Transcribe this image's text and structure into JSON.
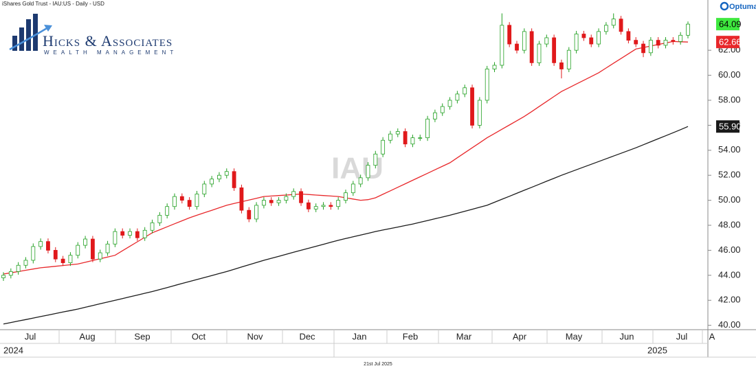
{
  "brand": {
    "firm": "Hicks & Associates",
    "tagline": "WEALTH MANAGEMENT",
    "vendor": "Optuma"
  },
  "chart_data": {
    "type": "candlestick",
    "title": "iShares Gold Trust - IAU:US - Daily - USD",
    "watermark": "IAU",
    "date_stamp": "21st Jul 2025",
    "up_color": "#22a022",
    "down_color": "#e0191b",
    "open": [
      43.8,
      44.0,
      44.3,
      44.8,
      45.2,
      46.3,
      46.7,
      46.0,
      45.3,
      45.0,
      45.6,
      46.4,
      46.9,
      45.3,
      45.8,
      46.5,
      47.5,
      47.2,
      47.5,
      47.0,
      47.6,
      48.2,
      48.8,
      49.5,
      50.3,
      50.0,
      49.5,
      50.5,
      51.3,
      51.7,
      52.0,
      52.3,
      51.0,
      49.2,
      48.5,
      49.6,
      50.0,
      49.8,
      50.0,
      50.3,
      50.7,
      49.8,
      49.3,
      49.5,
      49.6,
      49.5,
      50.0,
      50.6,
      51.3,
      51.8,
      52.8,
      53.7,
      54.8,
      55.3,
      55.5,
      54.5,
      55.0,
      55.0,
      56.5,
      57.0,
      57.5,
      58.0,
      58.5,
      59.0,
      56.0,
      58.0,
      60.5,
      60.8,
      64.0,
      62.5,
      62.0,
      63.5,
      61.0,
      62.5,
      63.0,
      61.0,
      60.5,
      62.0,
      63.3,
      63.0,
      62.5,
      63.5,
      64.0,
      64.5,
      63.5,
      62.8,
      62.5,
      61.8,
      62.8,
      62.4,
      62.8,
      62.7,
      63.2
    ],
    "high": [
      44.25,
      44.55,
      45.05,
      45.45,
      46.55,
      46.95,
      46.95,
      46.25,
      45.55,
      45.85,
      46.65,
      47.15,
      47.15,
      46.05,
      46.75,
      47.75,
      47.75,
      47.75,
      47.75,
      47.85,
      48.45,
      49.05,
      49.75,
      50.55,
      50.55,
      50.25,
      50.75,
      51.55,
      51.95,
      52.25,
      52.55,
      52.55,
      51.25,
      49.45,
      49.85,
      50.25,
      50.25,
      50.25,
      50.55,
      50.95,
      50.95,
      50.05,
      49.75,
      49.85,
      49.85,
      50.25,
      50.85,
      51.55,
      52.05,
      53.05,
      53.95,
      55.05,
      55.55,
      55.75,
      55.75,
      55.25,
      55.25,
      56.75,
      57.25,
      57.75,
      58.25,
      58.75,
      59.25,
      59.25,
      58.25,
      60.75,
      61.05,
      64.95,
      64.25,
      62.75,
      63.75,
      63.75,
      62.75,
      63.25,
      63.25,
      61.25,
      62.25,
      63.55,
      63.55,
      63.25,
      63.75,
      64.25,
      64.95,
      64.75,
      63.75,
      63.05,
      62.75,
      63.05,
      63.05,
      63.05,
      63.05,
      63.45,
      64.3
    ],
    "low": [
      43.55,
      43.75,
      44.05,
      44.55,
      44.95,
      46.05,
      45.75,
      45.05,
      44.75,
      44.75,
      45.35,
      46.15,
      45.05,
      45.05,
      45.55,
      46.25,
      46.95,
      46.95,
      46.75,
      46.75,
      47.35,
      47.95,
      48.55,
      49.25,
      49.75,
      49.25,
      49.25,
      50.25,
      51.05,
      51.45,
      51.75,
      50.75,
      48.95,
      48.25,
      48.25,
      49.35,
      49.55,
      49.55,
      49.75,
      50.05,
      49.55,
      49.05,
      49.05,
      49.25,
      49.25,
      49.25,
      49.75,
      50.35,
      51.05,
      51.55,
      52.55,
      53.45,
      54.55,
      55.05,
      54.25,
      54.25,
      54.75,
      54.75,
      56.25,
      56.75,
      57.25,
      57.75,
      58.25,
      55.75,
      55.75,
      57.75,
      60.25,
      60.55,
      62.25,
      61.75,
      61.75,
      60.75,
      60.75,
      62.25,
      60.75,
      59.75,
      60.25,
      61.75,
      62.75,
      62.25,
      62.25,
      63.25,
      63.75,
      63.25,
      62.55,
      62.25,
      61.45,
      61.55,
      62.15,
      62.15,
      62.45,
      62.45,
      62.95
    ],
    "close": [
      44.0,
      44.3,
      44.8,
      45.2,
      46.3,
      46.7,
      46.0,
      45.3,
      45.0,
      45.6,
      46.4,
      46.9,
      45.3,
      45.8,
      46.5,
      47.5,
      47.2,
      47.5,
      47.0,
      47.6,
      48.2,
      48.8,
      49.5,
      50.3,
      50.0,
      49.5,
      50.5,
      51.3,
      51.7,
      52.0,
      52.3,
      51.0,
      49.2,
      48.5,
      49.6,
      50.0,
      49.8,
      50.0,
      50.3,
      50.7,
      49.8,
      49.3,
      49.5,
      49.6,
      49.5,
      50.0,
      50.6,
      51.3,
      51.8,
      52.8,
      53.7,
      54.8,
      55.3,
      55.5,
      54.5,
      55.0,
      55.0,
      56.5,
      57.0,
      57.5,
      58.0,
      58.5,
      59.0,
      56.0,
      58.0,
      60.5,
      60.8,
      64.0,
      62.5,
      62.0,
      63.5,
      61.0,
      62.5,
      63.0,
      61.0,
      60.5,
      62.0,
      63.3,
      63.0,
      62.5,
      63.5,
      64.0,
      64.5,
      63.5,
      62.8,
      62.5,
      61.8,
      62.8,
      62.4,
      62.8,
      62.7,
      63.2,
      64.09
    ],
    "overlays": [
      {
        "color": "#e8272a",
        "values": [
          44.1,
          44.2,
          44.3,
          44.4,
          44.5,
          44.6,
          44.66,
          44.72,
          44.78,
          44.84,
          44.9,
          45.04,
          45.18,
          45.32,
          45.46,
          45.6,
          45.96,
          46.32,
          46.68,
          47.04,
          47.4,
          47.64,
          47.88,
          48.12,
          48.36,
          48.6,
          48.8,
          49.0,
          49.2,
          49.4,
          49.6,
          49.74,
          49.88,
          50.02,
          50.16,
          50.3,
          50.34,
          50.38,
          50.42,
          50.46,
          50.5,
          50.46,
          50.42,
          50.38,
          50.34,
          50.3,
          50.2,
          50.1,
          50.0,
          50.05,
          50.2,
          50.48,
          50.76,
          51.04,
          51.32,
          51.6,
          51.88,
          52.16,
          52.44,
          52.72,
          53.0,
          53.4,
          53.8,
          54.2,
          54.6,
          55.0,
          55.34,
          55.68,
          56.02,
          56.36,
          56.7,
          57.1,
          57.5,
          57.9,
          58.3,
          58.7,
          59.0,
          59.3,
          59.6,
          59.9,
          60.2,
          60.58,
          60.96,
          61.34,
          61.72,
          62.1,
          62.22,
          62.34,
          62.46,
          62.58,
          62.7,
          62.68,
          62.66
        ]
      },
      {
        "color": "#1a1a1a",
        "values": [
          40.1,
          40.22,
          40.34,
          40.46,
          40.58,
          40.7,
          40.82,
          40.94,
          41.06,
          41.18,
          41.3,
          41.44,
          41.58,
          41.72,
          41.86,
          42.0,
          42.14,
          42.28,
          42.42,
          42.56,
          42.7,
          42.86,
          43.02,
          43.18,
          43.34,
          43.5,
          43.66,
          43.82,
          43.98,
          44.14,
          44.3,
          44.48,
          44.66,
          44.84,
          45.02,
          45.2,
          45.36,
          45.52,
          45.68,
          45.84,
          46.0,
          46.16,
          46.32,
          46.48,
          46.64,
          46.8,
          46.94,
          47.08,
          47.22,
          47.36,
          47.5,
          47.62,
          47.74,
          47.86,
          47.98,
          48.1,
          48.24,
          48.38,
          48.52,
          48.66,
          48.8,
          48.96,
          49.12,
          49.28,
          49.44,
          49.6,
          49.84,
          50.08,
          50.32,
          50.56,
          50.8,
          51.04,
          51.28,
          51.52,
          51.76,
          52.0,
          52.22,
          52.44,
          52.66,
          52.88,
          53.1,
          53.32,
          53.54,
          53.76,
          53.98,
          54.2,
          54.44,
          54.68,
          54.92,
          55.16,
          55.4,
          55.65,
          55.9
        ],
        "value_labels": [
          null,
          null,
          null,
          null,
          null,
          null,
          null,
          null,
          null,
          null,
          null,
          null,
          null,
          null,
          null,
          null,
          null,
          null,
          null,
          null,
          null,
          null,
          null,
          null,
          null,
          null,
          null,
          null,
          null,
          null,
          null,
          null,
          null,
          null,
          null,
          null,
          null,
          null,
          null,
          null,
          null,
          null,
          null,
          null,
          null,
          null,
          null,
          null,
          null,
          null,
          null,
          null,
          null,
          null,
          null,
          null,
          null,
          null,
          null,
          null,
          null,
          null,
          null,
          null,
          null,
          null,
          null,
          null,
          null,
          null,
          null,
          null,
          null,
          null,
          null,
          null,
          null,
          null,
          null,
          null,
          null,
          null,
          null,
          null,
          null,
          null,
          null,
          null,
          null,
          null,
          null,
          null,
          "55.90"
        ]
      }
    ],
    "ylim": [
      39.65,
      66.02
    ],
    "yticks": [
      {
        "value": 40,
        "label": "40.00"
      },
      {
        "value": 42,
        "label": "42.00"
      },
      {
        "value": 44,
        "label": "44.00"
      },
      {
        "value": 46,
        "label": "46.00"
      },
      {
        "value": 48,
        "label": "48.00"
      },
      {
        "value": 50,
        "label": "50.00"
      },
      {
        "value": 52,
        "label": "52.00"
      },
      {
        "value": 54,
        "label": "54.00"
      },
      {
        "value": 56,
        "label": "56.00"
      },
      {
        "value": 58,
        "label": "58.00"
      },
      {
        "value": 60,
        "label": "60.00"
      },
      {
        "value": 62,
        "label": "62.00"
      }
    ],
    "months": [
      "Jul",
      "Aug",
      "Sep",
      "Oct",
      "Nov",
      "Dec",
      "Jan",
      "Feb",
      "Mar",
      "Apr",
      "May",
      "Jun",
      "Jul",
      "A"
    ],
    "years": [
      "2024",
      "2025"
    ]
  }
}
